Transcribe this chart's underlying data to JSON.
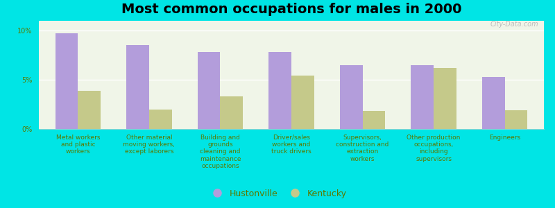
{
  "title": "Most common occupations for males in 2000",
  "categories": [
    "Metal workers\nand plastic\nworkers",
    "Other material\nmoving workers,\nexcept laborers",
    "Building and\ngrounds\ncleaning and\nmaintenance\noccupations",
    "Driver/sales\nworkers and\ntruck drivers",
    "Supervisors,\nconstruction and\nextraction\nworkers",
    "Other production\noccupations,\nincluding\nsupervisors",
    "Engineers"
  ],
  "hustonville": [
    9.7,
    8.5,
    7.8,
    7.8,
    6.5,
    6.5,
    5.3
  ],
  "kentucky": [
    3.9,
    2.0,
    3.3,
    5.4,
    1.8,
    6.2,
    1.9
  ],
  "hustonville_color": "#b39ddb",
  "kentucky_color": "#c5c98a",
  "background_color": "#00e5e5",
  "plot_bg_color": "#f0f5e8",
  "ylim": [
    0,
    11
  ],
  "yticks": [
    0,
    5,
    10
  ],
  "ytick_labels": [
    "0%",
    "5%",
    "10%"
  ],
  "legend_labels": [
    "Hustonville",
    "Kentucky"
  ],
  "bar_width": 0.32,
  "title_fontsize": 14,
  "tick_fontsize": 6.5,
  "label_color": "#5a7a00"
}
